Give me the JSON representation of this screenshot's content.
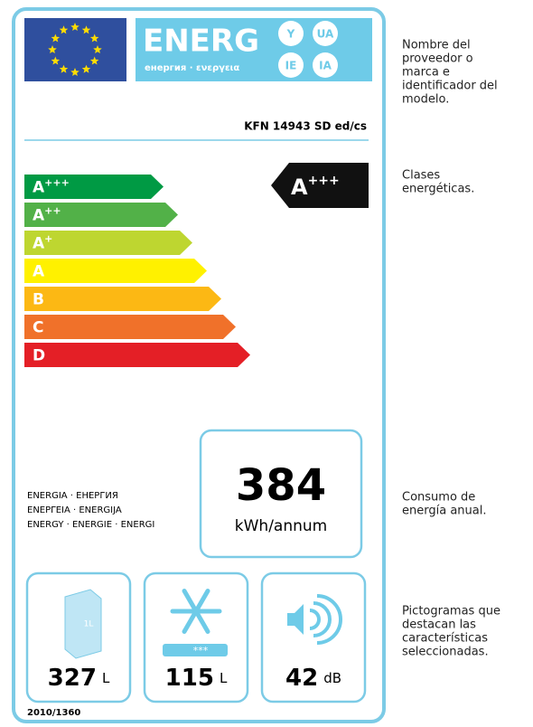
{
  "header": {
    "title": "ENERG",
    "subtitle": "енергия · ενεργεια",
    "badges": [
      "Y",
      "UA",
      "IE",
      "IA"
    ]
  },
  "model": "KFN 14943 SD ed/cs",
  "classes": [
    {
      "letter": "A",
      "sup": "+++"
    },
    {
      "letter": "A",
      "sup": "++"
    },
    {
      "letter": "A",
      "sup": "+"
    },
    {
      "letter": "A",
      "sup": ""
    },
    {
      "letter": "B",
      "sup": ""
    },
    {
      "letter": "C",
      "sup": ""
    },
    {
      "letter": "D",
      "sup": ""
    }
  ],
  "rating": {
    "letter": "A",
    "sup": "+++"
  },
  "languages": [
    "ENERGIA · ЕНЕРГИЯ",
    "ΕΝΕΡΓΕΙΑ · ENERGIJA",
    "ENERGY · ENERGIE · ENERGI"
  ],
  "consumption": {
    "value": "384",
    "unit": "kWh/annum"
  },
  "pictograms": [
    {
      "icon_label": "1L",
      "value": "327",
      "unit": "L"
    },
    {
      "icon_label": "***",
      "value": "115",
      "unit": "L"
    },
    {
      "value": "42",
      "unit": "dB"
    }
  ],
  "regulation": "2010/1360",
  "notes": [
    [
      "Nombre del",
      "proveedor o",
      "marca e",
      "identificador del",
      "modelo."
    ],
    [
      "Clases",
      "energéticas."
    ],
    [
      "Consumo de",
      "energía anual."
    ],
    [
      "Pictogramas que",
      "destacan las",
      "características",
      "seleccionadas."
    ]
  ]
}
